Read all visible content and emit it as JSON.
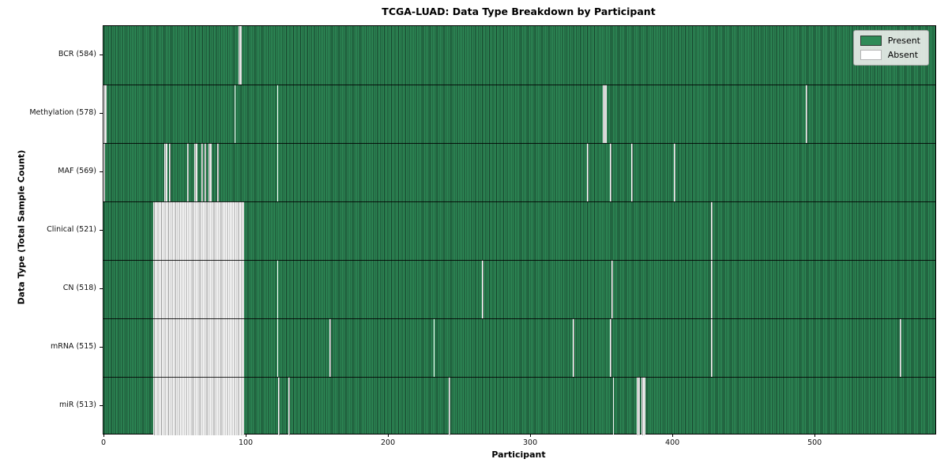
{
  "chart_data": {
    "type": "heatmap",
    "title": "TCGA-LUAD: Data Type Breakdown by Participant",
    "xlabel": "Participant",
    "ylabel": "Data Type (Total Sample Count)",
    "x_ticks": [
      0,
      100,
      200,
      300,
      400,
      500
    ],
    "x_range": [
      0,
      586
    ],
    "n_participants": 586,
    "grid": false,
    "legend": {
      "position": "upper right",
      "items": [
        {
          "label": "Present",
          "color": "#2e8b57"
        },
        {
          "label": "Absent",
          "color": "#ffffff"
        }
      ]
    },
    "rows": [
      {
        "label": "BCR (584)",
        "name": "BCR",
        "present_count": 584,
        "absent_ranges": [
          [
            95,
            96
          ]
        ]
      },
      {
        "label": "Methylation (578)",
        "name": "Methylation",
        "present_count": 578,
        "absent_ranges": [
          [
            0,
            1
          ],
          [
            92,
            92
          ],
          [
            122,
            122
          ],
          [
            351,
            353
          ],
          [
            494,
            494
          ]
        ]
      },
      {
        "label": "MAF (569)",
        "name": "MAF",
        "present_count": 569,
        "absent_ranges": [
          [
            0,
            0
          ],
          [
            43,
            44
          ],
          [
            46,
            46
          ],
          [
            59,
            59
          ],
          [
            64,
            65
          ],
          [
            69,
            69
          ],
          [
            71,
            71
          ],
          [
            74,
            75
          ],
          [
            80,
            80
          ],
          [
            122,
            122
          ],
          [
            340,
            340
          ],
          [
            356,
            356
          ],
          [
            371,
            371
          ],
          [
            401,
            401
          ]
        ]
      },
      {
        "label": "Clinical (521)",
        "name": "Clinical",
        "present_count": 521,
        "absent_ranges": [
          [
            35,
            98
          ],
          [
            427,
            427
          ]
        ]
      },
      {
        "label": "CN (518)",
        "name": "CN",
        "present_count": 518,
        "absent_ranges": [
          [
            35,
            98
          ],
          [
            122,
            122
          ],
          [
            266,
            266
          ],
          [
            357,
            357
          ],
          [
            427,
            427
          ]
        ]
      },
      {
        "label": "mRNA (515)",
        "name": "mRNA",
        "present_count": 515,
        "absent_ranges": [
          [
            35,
            98
          ],
          [
            122,
            122
          ],
          [
            159,
            159
          ],
          [
            232,
            232
          ],
          [
            330,
            330
          ],
          [
            356,
            356
          ],
          [
            427,
            427
          ],
          [
            560,
            560
          ]
        ]
      },
      {
        "label": "miR (513)",
        "name": "miR",
        "present_count": 513,
        "absent_ranges": [
          [
            35,
            98
          ],
          [
            123,
            123
          ],
          [
            130,
            130
          ],
          [
            243,
            243
          ],
          [
            358,
            358
          ],
          [
            375,
            376
          ],
          [
            378,
            380
          ]
        ]
      }
    ],
    "colors": {
      "present": "#2e8b57",
      "present_edge": "#16412b",
      "absent": "#ffffff",
      "absent_edge": "#9a9a9a",
      "axes_edge": "#000000",
      "legend_bg": "#e8ece8"
    }
  }
}
